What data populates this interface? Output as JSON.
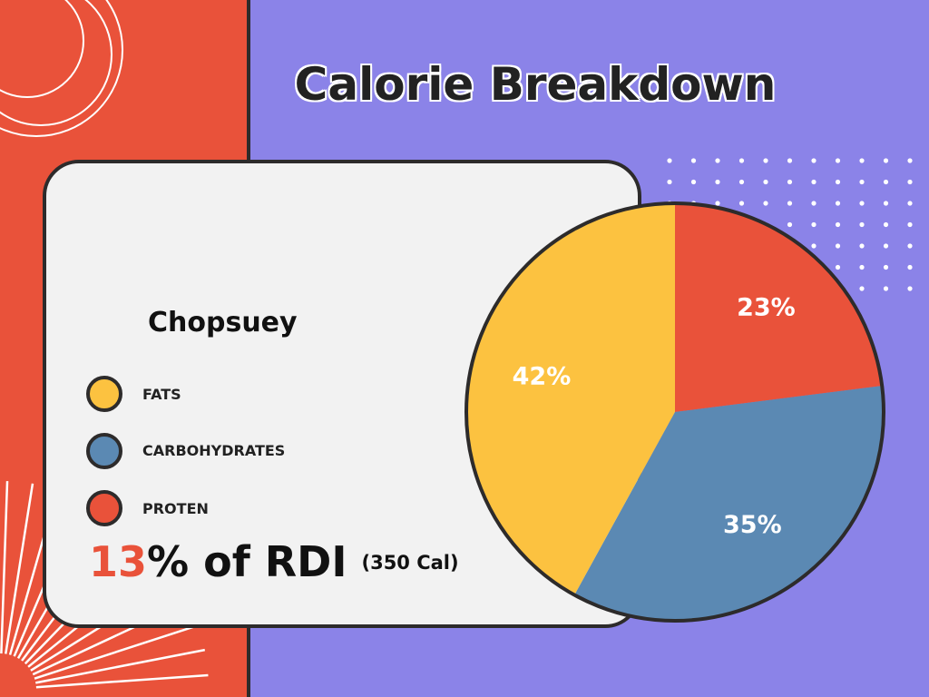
{
  "title": "Calorie Breakdown",
  "dish": "Chopsuey",
  "legend": [
    {
      "label": "FATS",
      "color": "#fcc240"
    },
    {
      "label": "CARBOHYDRATES",
      "color": "#5b89b3"
    },
    {
      "label": "PROTEN",
      "color": "#e9523a"
    }
  ],
  "rdi": {
    "value": "13",
    "suffix": "% of RDI",
    "calories": "(350 Cal)"
  },
  "colors": {
    "background": "#8b83e8",
    "accent": "#e9523a",
    "card": "#f2f2f2",
    "outline": "#2d2b2b"
  },
  "chart_data": {
    "type": "pie",
    "title": "Calorie Breakdown",
    "categories": [
      "PROTEN",
      "CARBOHYDRATES",
      "FATS"
    ],
    "values": [
      23,
      35,
      42
    ],
    "labels": [
      "23%",
      "35%",
      "42%"
    ],
    "colors": [
      "#e9523a",
      "#5b89b3",
      "#fcc240"
    ],
    "legend": "left"
  }
}
